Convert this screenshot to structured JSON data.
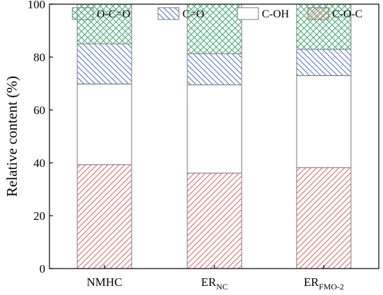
{
  "chart_data": {
    "type": "bar",
    "stacked": true,
    "ylabel": "Relative content (%)",
    "xlabel": "",
    "ylim": [
      0,
      100
    ],
    "yticks": [
      0,
      20,
      40,
      60,
      80,
      100
    ],
    "categories": [
      {
        "main": "NMHC",
        "sub": ""
      },
      {
        "main": "ER",
        "sub": "NC"
      },
      {
        "main": "ER",
        "sub": "FMO-2"
      }
    ],
    "series": [
      {
        "name": "C-O-C",
        "values": [
          39.3,
          36.1,
          38.2
        ],
        "color": "#e06060",
        "pattern": "forward-hatch"
      },
      {
        "name": "C-OH",
        "values": [
          30.5,
          33.4,
          34.8
        ],
        "color": "#ffffff",
        "pattern": "none"
      },
      {
        "name": "C=O",
        "values": [
          15.2,
          11.8,
          9.9
        ],
        "color": "#4a6fc9",
        "pattern": "back-hatch"
      },
      {
        "name": "O-C=O",
        "values": [
          15.0,
          18.7,
          17.1
        ],
        "color": "#3aa870",
        "pattern": "crosshatch"
      }
    ],
    "legend_order": [
      "O-C=O",
      "C=O",
      "C-OH",
      "C-O-C"
    ],
    "legend_position": "top-inside",
    "grid": false
  }
}
